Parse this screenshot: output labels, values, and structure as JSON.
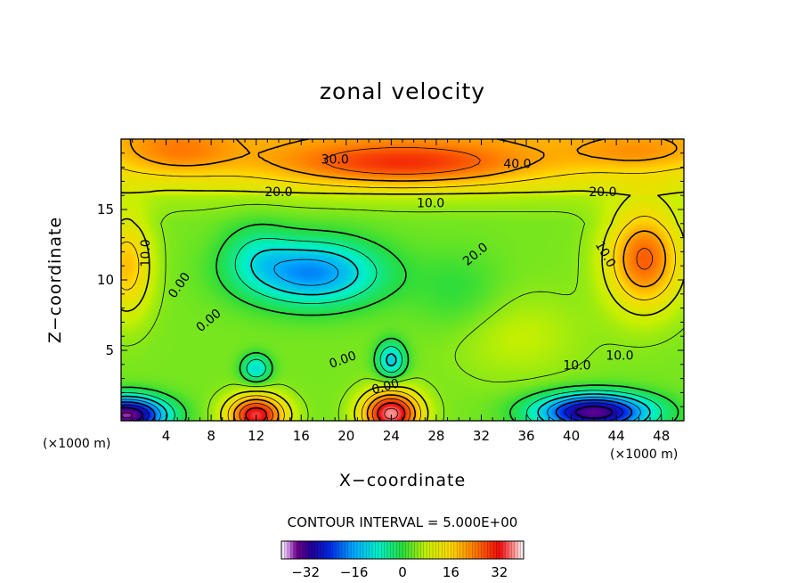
{
  "title": "zonal velocity",
  "footer": {
    "contour_interval": "CONTOUR INTERVAL = 5.000E+00"
  },
  "chart_data": {
    "type": "heatmap",
    "title": "zonal velocity",
    "xlabel": "X−coordinate",
    "ylabel": "Z−coordinate",
    "x_unit": "(×1000 m)",
    "xlim": [
      0,
      50
    ],
    "ylim": [
      0,
      20
    ],
    "x_ticks": [
      4,
      8,
      12,
      16,
      20,
      24,
      28,
      32,
      36,
      40,
      44,
      48
    ],
    "y_ticks": [
      5,
      10,
      15
    ],
    "contour_interval": 5.0,
    "contour_labels": [
      "30.0",
      "40.0",
      "20.0",
      "20.0",
      "10.0",
      "10.0",
      "0.00",
      "20.0",
      "0.00",
      "10.0",
      "0.00",
      "10.0",
      "0.00",
      "10.0"
    ],
    "colorbar": {
      "ticks": [
        -32,
        -16,
        0,
        16,
        32
      ],
      "tick_labels": [
        "−32",
        "−16",
        "0",
        "16",
        "32"
      ],
      "range": [
        -40,
        40
      ]
    },
    "field_features": [
      {
        "feature": "upper jet",
        "x": 25,
        "z": 18.2,
        "value": 38
      },
      {
        "feature": "upper-left max",
        "x": 5,
        "z": 19,
        "value": 34
      },
      {
        "feature": "central negative cell",
        "x": 18,
        "z": 10.5,
        "value": -18
      },
      {
        "feature": "right positive cell",
        "x": 46.5,
        "z": 11.5,
        "value": 26
      },
      {
        "feature": "left positive cell",
        "x": 0.5,
        "z": 11,
        "value": 17
      },
      {
        "feature": "bottom-left negative",
        "x": 0.5,
        "z": 0.5,
        "value": -36
      },
      {
        "feature": "bottom-right negative",
        "x": 42,
        "z": 0.6,
        "value": -34
      },
      {
        "feature": "bottom max near 12",
        "x": 12,
        "z": 0.4,
        "value": 30
      },
      {
        "feature": "bottom max near 24",
        "x": 24,
        "z": 0.5,
        "value": 33
      },
      {
        "feature": "small low near 12",
        "x": 12,
        "z": 3.7,
        "value": -10
      },
      {
        "feature": "small low near 24",
        "x": 24,
        "z": 4.3,
        "value": -12
      }
    ]
  }
}
